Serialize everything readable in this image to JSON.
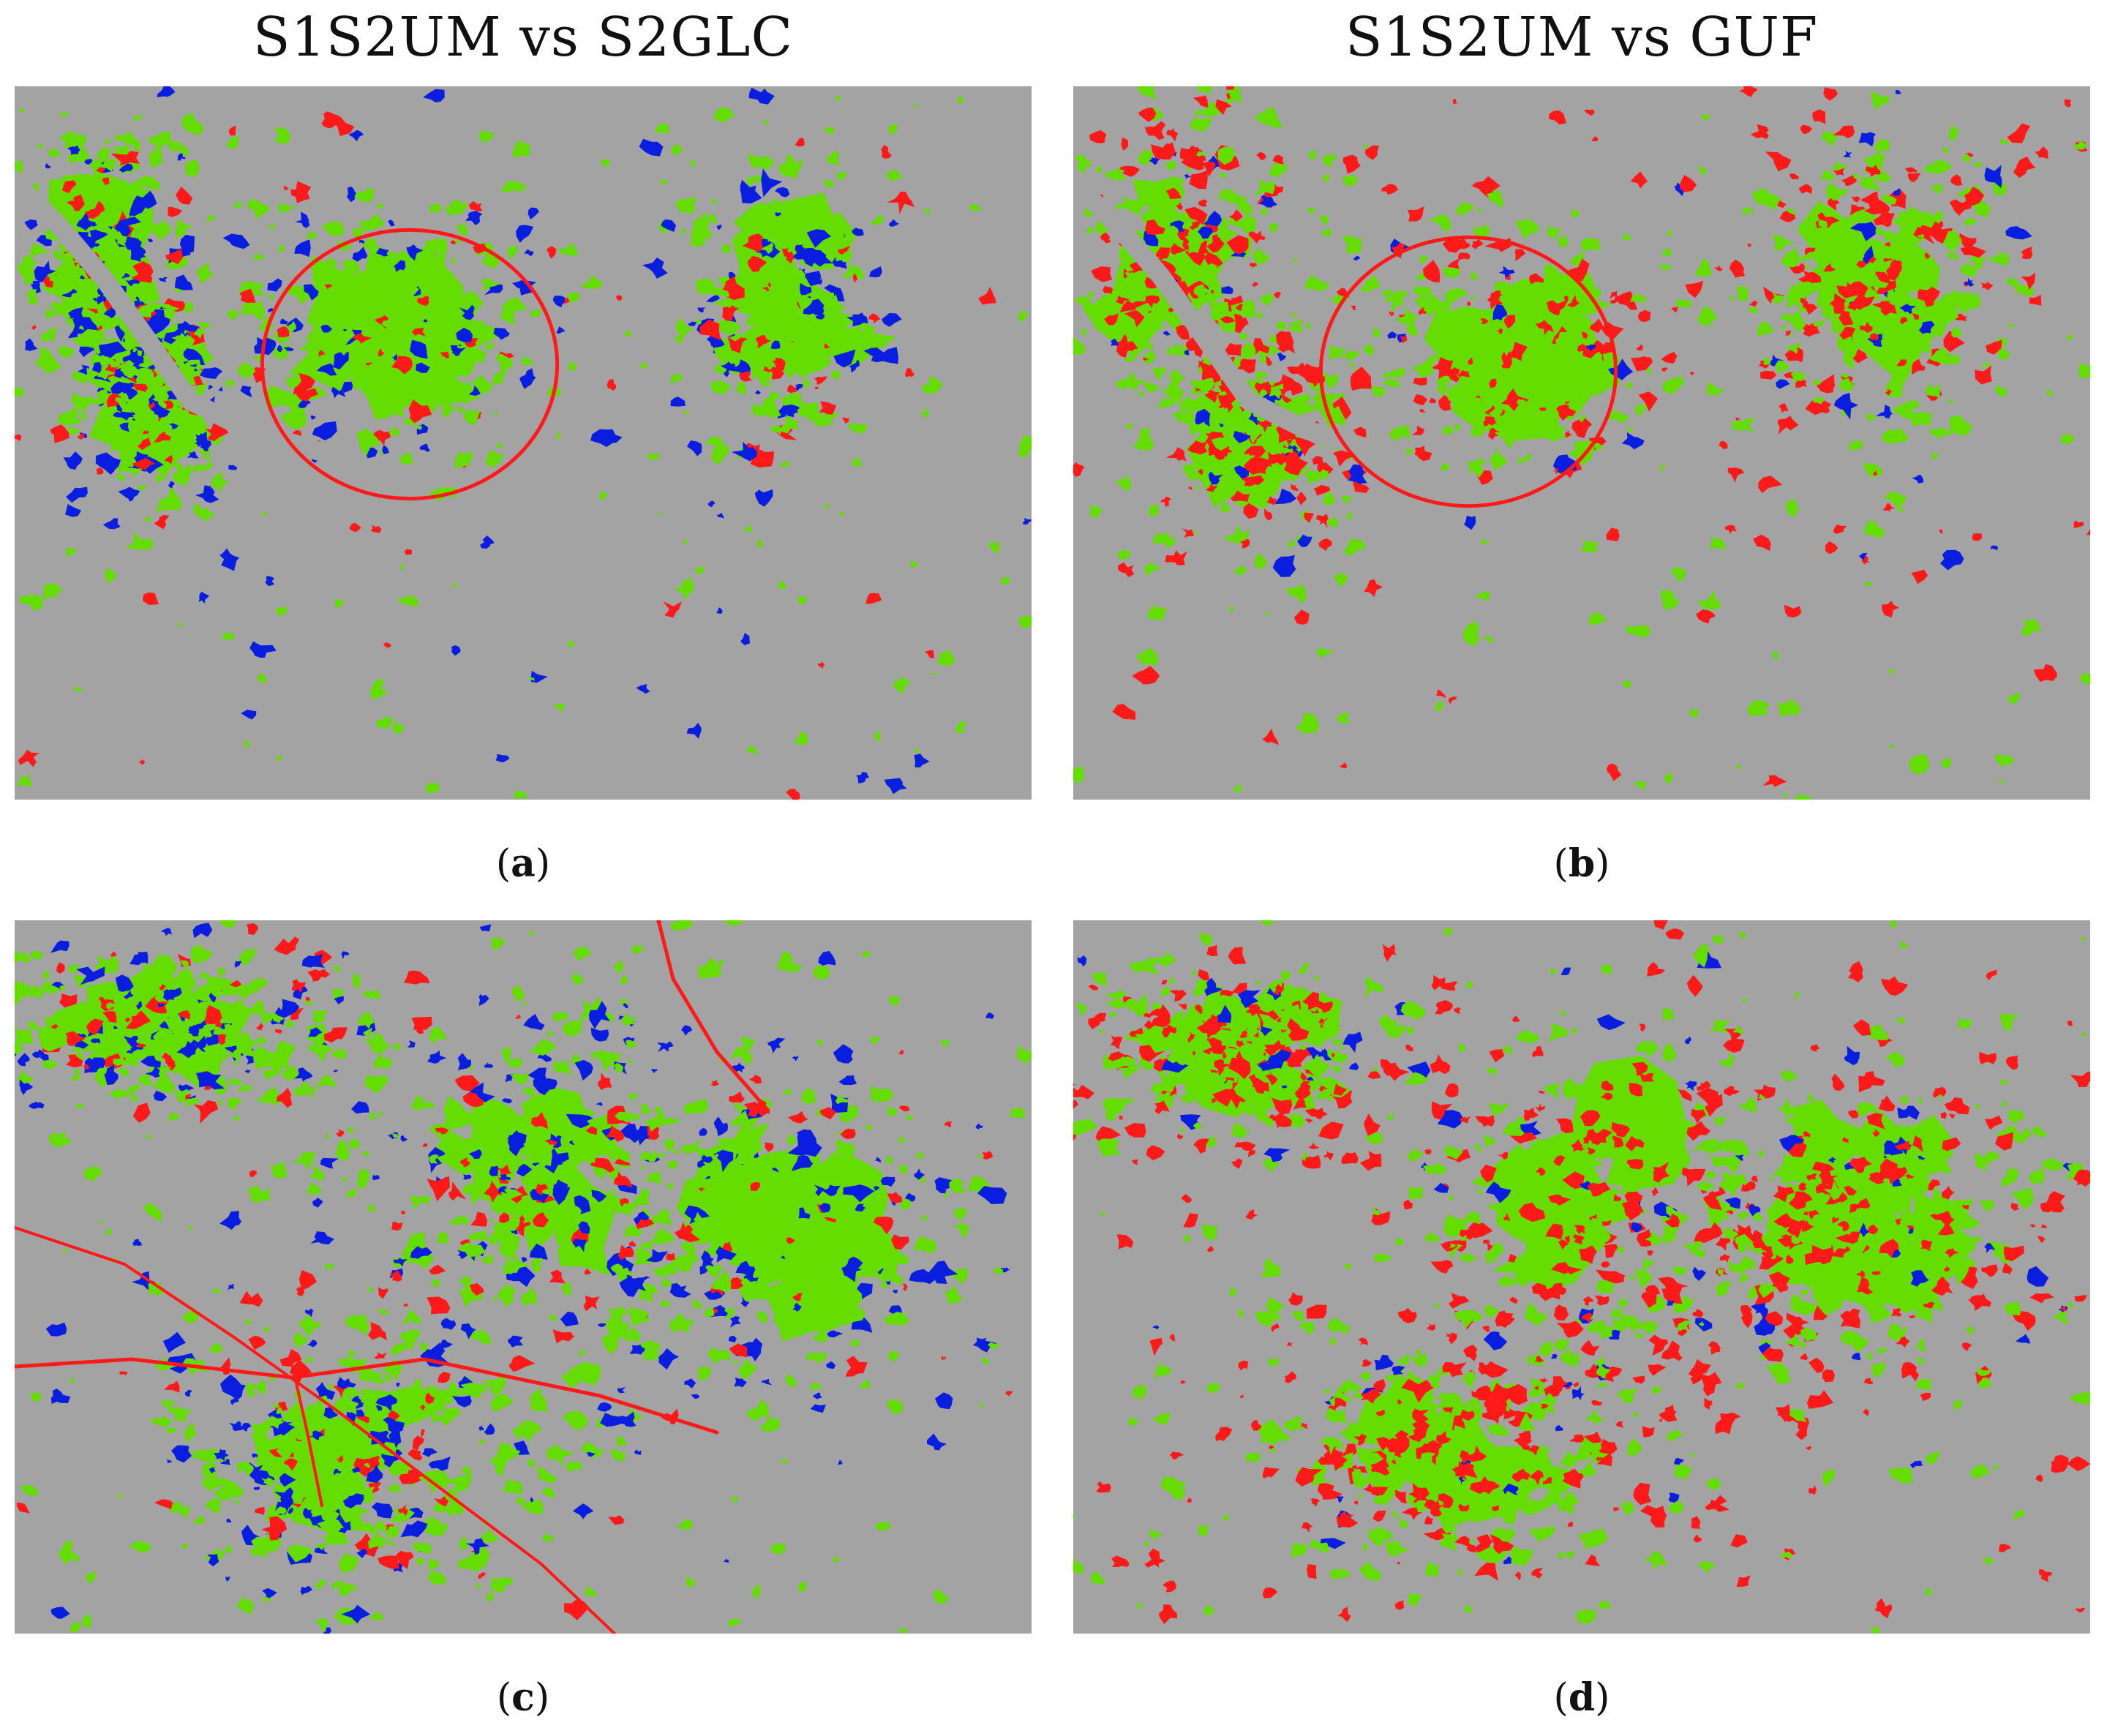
{
  "titles": {
    "left": "S1S2UM vs S2GLC",
    "right": "S1S2UM vs GUF"
  },
  "colors": {
    "background": "#a3a3a3",
    "agreement": "#66dd00",
    "only_a": "#ff1a1a",
    "only_b": "#0a1ee0"
  },
  "panels": [
    {
      "id": "a",
      "letter": "a",
      "comparison": "S1S2UM vs S2GLC"
    },
    {
      "id": "b",
      "letter": "b",
      "comparison": "S1S2UM vs GUF"
    },
    {
      "id": "c",
      "letter": "c",
      "comparison": "S1S2UM vs S2GLC"
    },
    {
      "id": "d",
      "letter": "d",
      "comparison": "S1S2UM vs GUF"
    }
  ]
}
